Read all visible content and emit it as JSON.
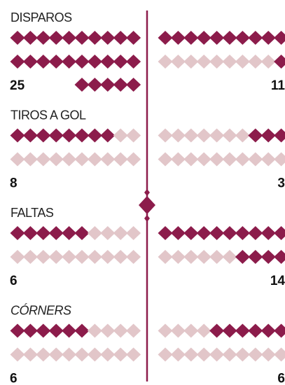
{
  "chart_data": {
    "type": "pictogram",
    "categories": [
      "DISPAROS",
      "TIROS A GOL",
      "FALTAS",
      "CÓRNERS"
    ],
    "per_row": 10,
    "empty_color": "#e2c6c9",
    "series": [
      {
        "color": "#8c1c4b",
        "values": [
          25,
          8,
          6,
          6
        ]
      },
      {
        "color": "#8c1c4b",
        "values": [
          11,
          3,
          14,
          6
        ]
      }
    ]
  }
}
